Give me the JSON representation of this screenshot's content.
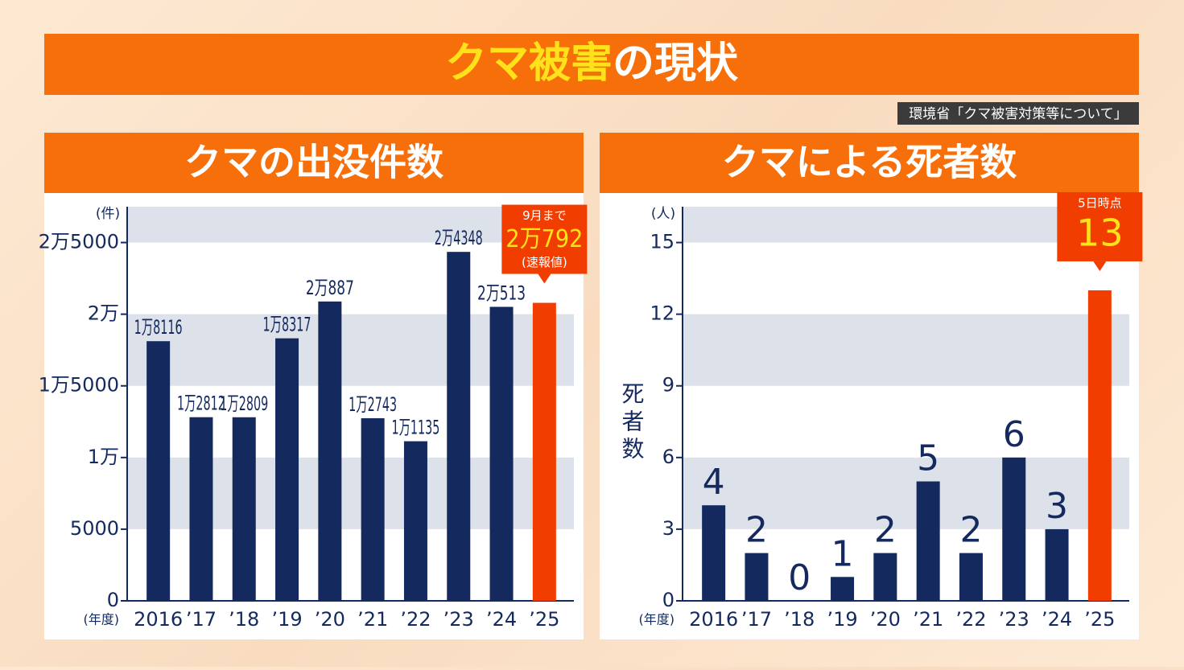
{
  "header": {
    "title_parts": [
      "クマ被害",
      "の現状"
    ],
    "source": "環境省「クマ被害対策等について」"
  },
  "chart_data": [
    {
      "type": "bar",
      "title": "クマの出没件数",
      "y_unit": "(件)",
      "x_label": "(年度)",
      "categories": [
        "2016",
        "’17",
        "’18",
        "’19",
        "’20",
        "’21",
        "’22",
        "’23",
        "’24",
        "’25"
      ],
      "values": [
        18116,
        12812,
        12809,
        18317,
        20887,
        12743,
        11135,
        24348,
        20513,
        20792
      ],
      "value_labels": [
        "1万8116",
        "1万2812",
        "1万2809",
        "1万8317",
        "2万887",
        "1万2743",
        "1万1135",
        "2万4348",
        "2万513",
        "2万792"
      ],
      "colors": [
        "#14295e",
        "#14295e",
        "#14295e",
        "#14295e",
        "#14295e",
        "#14295e",
        "#14295e",
        "#14295e",
        "#14295e",
        "#f23d00"
      ],
      "annotation": [
        "9月まで",
        "(速報値)"
      ],
      "ylim": [
        0,
        27500
      ],
      "yticks": [
        0,
        5000,
        {
          "value": 10000,
          "label": "1万"
        },
        {
          "value": 15000,
          "label": "1万5000"
        },
        {
          "value": 20000,
          "label": "2万"
        },
        {
          "value": 25000,
          "label": "2万5000"
        }
      ],
      "grid": "bands"
    },
    {
      "type": "bar",
      "title": "クマによる死者数",
      "y_unit": "(人)",
      "y_label": "死者数",
      "x_label": "(年度)",
      "categories": [
        "2016",
        "’17",
        "’18",
        "’19",
        "’20",
        "’21",
        "’22",
        "’23",
        "’24",
        "’25"
      ],
      "values": [
        4,
        2,
        0,
        1,
        2,
        5,
        2,
        6,
        3,
        13
      ],
      "colors": [
        "#14295e",
        "#14295e",
        "#14295e",
        "#14295e",
        "#14295e",
        "#14295e",
        "#14295e",
        "#14295e",
        "#14295e",
        "#f23d00"
      ],
      "annotation": [
        "5日時点"
      ],
      "ylim": [
        0,
        16.5
      ],
      "yticks": [
        0,
        3,
        6,
        9,
        12,
        15
      ],
      "grid": "bands"
    }
  ]
}
